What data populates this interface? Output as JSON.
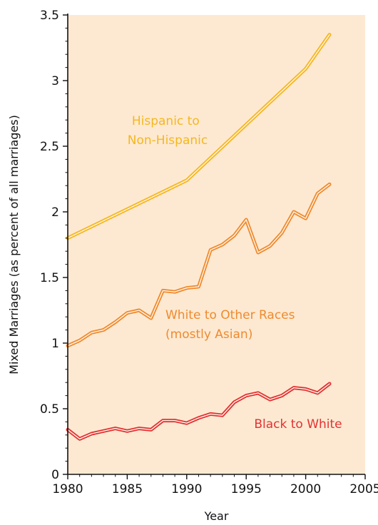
{
  "chart_data": {
    "type": "line",
    "title": "",
    "xlabel": "Year",
    "ylabel": "Mixed Marriages (as percent of all marriages)",
    "xlim": [
      1980,
      2005
    ],
    "ylim": [
      0,
      3.5
    ],
    "x_ticks": [
      "1980",
      "1985",
      "1990",
      "1995",
      "2000",
      "2005"
    ],
    "y_ticks": [
      "0",
      "0.5",
      "1",
      "1.5",
      "2",
      "2.5",
      "3",
      "3.5"
    ],
    "grid": false,
    "legend": "none",
    "background": "#fde9d2",
    "series": [
      {
        "name": "Hispanic to Non-Hispanic",
        "label_lines": [
          "Hispanic to",
          "Non-Hispanic"
        ],
        "color": "#f5b71f",
        "x": [
          1980,
          1990,
          2000,
          2002
        ],
        "values": [
          1.8,
          2.24,
          3.09,
          3.35
        ]
      },
      {
        "name": "White to Other Races (mostly Asian)",
        "label_lines": [
          "White to Other Races",
          "(mostly Asian)"
        ],
        "color": "#ef8a2e",
        "x": [
          1980,
          1981,
          1982,
          1983,
          1984,
          1985,
          1986,
          1987,
          1988,
          1989,
          1990,
          1991,
          1992,
          1993,
          1994,
          1995,
          1996,
          1997,
          1998,
          1999,
          2000,
          2001,
          2002
        ],
        "values": [
          0.98,
          1.02,
          1.08,
          1.1,
          1.16,
          1.23,
          1.25,
          1.19,
          1.4,
          1.39,
          1.42,
          1.43,
          1.71,
          1.75,
          1.82,
          1.94,
          1.69,
          1.74,
          1.84,
          2.0,
          1.95,
          2.14,
          2.21
        ]
      },
      {
        "name": "Black to White",
        "label_lines": [
          "Black to White"
        ],
        "color": "#e23232",
        "x": [
          1980,
          1981,
          1982,
          1983,
          1984,
          1985,
          1986,
          1987,
          1988,
          1989,
          1990,
          1991,
          1992,
          1993,
          1994,
          1995,
          1996,
          1997,
          1998,
          1999,
          2000,
          2001,
          2002
        ],
        "values": [
          0.34,
          0.27,
          0.31,
          0.33,
          0.35,
          0.33,
          0.35,
          0.34,
          0.41,
          0.41,
          0.39,
          0.43,
          0.46,
          0.45,
          0.55,
          0.6,
          0.62,
          0.57,
          0.6,
          0.66,
          0.65,
          0.62,
          0.69
        ]
      }
    ]
  }
}
